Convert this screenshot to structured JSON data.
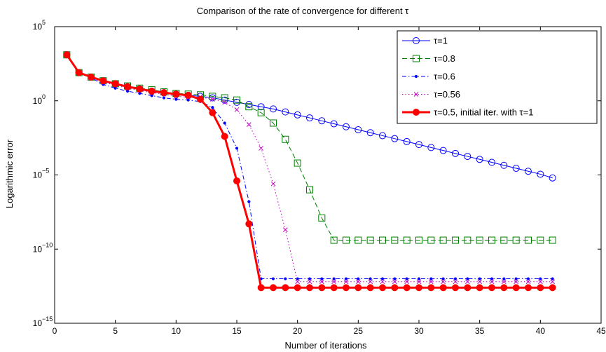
{
  "chart_data": {
    "type": "line",
    "title": "Comparison of the rate of convergence for different τ",
    "xlabel": "Number of iterations",
    "ylabel": "Logarithmic error",
    "xlim": [
      0,
      45
    ],
    "ylim_log10": [
      -15,
      5
    ],
    "yscale": "log",
    "xticks": [
      0,
      5,
      10,
      15,
      20,
      25,
      30,
      35,
      40,
      45
    ],
    "xtick_labels": [
      "0",
      "5",
      "10",
      "15",
      "20",
      "25",
      "30",
      "35",
      "40",
      "45"
    ],
    "yticks_log10": [
      -15,
      -10,
      -5,
      0,
      5
    ],
    "ytick_bases": [
      "10",
      "10",
      "10",
      "10",
      "10"
    ],
    "ytick_exps": [
      "−15",
      "−10",
      "−5",
      "0",
      "5"
    ],
    "grid": false,
    "legend_position": "top-right",
    "series": [
      {
        "name": "τ=1",
        "color": "#0000ff",
        "marker": "circle",
        "line": "solid",
        "width": 1,
        "x": [
          1,
          2,
          3,
          4,
          5,
          6,
          7,
          8,
          9,
          10,
          11,
          12,
          13,
          14,
          15,
          16,
          17,
          18,
          19,
          20,
          21,
          22,
          23,
          24,
          25,
          26,
          27,
          28,
          29,
          30,
          31,
          32,
          33,
          34,
          35,
          36,
          37,
          38,
          39,
          40,
          41
        ],
        "log10_y": [
          3.1,
          1.9,
          1.6,
          1.35,
          1.15,
          0.95,
          0.8,
          0.65,
          0.55,
          0.45,
          0.37,
          0.3,
          0.2,
          0.05,
          -0.1,
          -0.25,
          -0.4,
          -0.55,
          -0.75,
          -0.95,
          -1.15,
          -1.35,
          -1.55,
          -1.75,
          -1.95,
          -2.15,
          -2.35,
          -2.55,
          -2.75,
          -2.95,
          -3.15,
          -3.35,
          -3.55,
          -3.75,
          -3.95,
          -4.15,
          -4.35,
          -4.55,
          -4.75,
          -4.95,
          -5.2
        ]
      },
      {
        "name": "τ=0.8",
        "color": "#008000",
        "marker": "square",
        "line": "dashed",
        "width": 1,
        "x": [
          1,
          2,
          3,
          4,
          5,
          6,
          7,
          8,
          9,
          10,
          11,
          12,
          13,
          14,
          15,
          16,
          17,
          18,
          19,
          20,
          21,
          22,
          23,
          24,
          25,
          26,
          27,
          28,
          29,
          30,
          31,
          32,
          33,
          34,
          35,
          36,
          37,
          38,
          39,
          40,
          41
        ],
        "log10_y": [
          3.1,
          1.9,
          1.6,
          1.35,
          1.15,
          1.0,
          0.85,
          0.75,
          0.6,
          0.5,
          0.45,
          0.4,
          0.3,
          0.2,
          0.05,
          -0.4,
          -0.8,
          -1.5,
          -2.6,
          -4.2,
          -6.0,
          -7.9,
          -9.4,
          -9.4,
          -9.4,
          -9.4,
          -9.4,
          -9.4,
          -9.4,
          -9.4,
          -9.4,
          -9.4,
          -9.4,
          -9.4,
          -9.4,
          -9.4,
          -9.4,
          -9.4,
          -9.4,
          -9.4,
          -9.4
        ]
      },
      {
        "name": "τ=0.6",
        "color": "#0000ff",
        "marker": "dot",
        "line": "dashdot",
        "width": 1,
        "x": [
          1,
          2,
          3,
          4,
          5,
          6,
          7,
          8,
          9,
          10,
          11,
          12,
          13,
          14,
          15,
          16,
          17,
          18,
          19,
          20,
          21,
          22,
          23,
          24,
          25,
          26,
          27,
          28,
          29,
          30,
          31,
          32,
          33,
          34,
          35,
          36,
          37,
          38,
          39,
          40,
          41
        ],
        "log10_y": [
          3.1,
          1.9,
          1.55,
          1.1,
          0.85,
          0.65,
          0.5,
          0.35,
          0.2,
          0.1,
          0.05,
          -0.05,
          -0.45,
          -1.5,
          -3.2,
          -6.8,
          -12.0,
          -12.0,
          -12.0,
          -12.0,
          -12.0,
          -12.0,
          -12.0,
          -12.0,
          -12.0,
          -12.0,
          -12.0,
          -12.0,
          -12.0,
          -12.0,
          -12.0,
          -12.0,
          -12.0,
          -12.0,
          -12.0,
          -12.0,
          -12.0,
          -12.0,
          -12.0,
          -12.0,
          -12.0
        ]
      },
      {
        "name": "τ=0.56",
        "color": "#bf00bf",
        "marker": "x",
        "line": "dotted",
        "width": 1,
        "x": [
          1,
          2,
          3,
          4,
          5,
          6,
          7,
          8,
          9,
          10,
          11,
          12,
          13,
          14,
          15,
          16,
          17,
          18,
          19,
          20,
          21,
          22,
          23,
          24,
          25,
          26,
          27,
          28,
          29,
          30,
          31,
          32,
          33,
          34,
          35,
          36,
          37,
          38,
          39,
          40,
          41
        ],
        "log10_y": [
          3.1,
          1.9,
          1.55,
          1.25,
          1.05,
          0.85,
          0.7,
          0.55,
          0.45,
          0.3,
          0.25,
          0.25,
          0.1,
          -0.1,
          -0.6,
          -1.6,
          -3.2,
          -5.6,
          -8.7,
          -12.2,
          -12.2,
          -12.2,
          -12.2,
          -12.2,
          -12.2,
          -12.2,
          -12.2,
          -12.2,
          -12.2,
          -12.2,
          -12.2,
          -12.2,
          -12.2,
          -12.2,
          -12.2,
          -12.2,
          -12.2,
          -12.2,
          -12.2,
          -12.2,
          -12.2
        ]
      },
      {
        "name": "τ=0.5, initial iter. with τ=1",
        "color": "#ff0000",
        "marker": "filled-circle",
        "line": "solid",
        "width": 3,
        "x": [
          1,
          2,
          3,
          4,
          5,
          6,
          7,
          8,
          9,
          10,
          11,
          12,
          13,
          14,
          15,
          16,
          17,
          18,
          19,
          20,
          21,
          22,
          23,
          24,
          25,
          26,
          27,
          28,
          29,
          30,
          31,
          32,
          33,
          34,
          35,
          36,
          37,
          38,
          39,
          40,
          41
        ],
        "log10_y": [
          3.1,
          1.9,
          1.6,
          1.35,
          1.15,
          0.95,
          0.8,
          0.65,
          0.55,
          0.45,
          0.37,
          0.1,
          -0.8,
          -2.4,
          -5.4,
          -8.3,
          -12.6,
          -12.6,
          -12.6,
          -12.6,
          -12.6,
          -12.6,
          -12.6,
          -12.6,
          -12.6,
          -12.6,
          -12.6,
          -12.6,
          -12.6,
          -12.6,
          -12.6,
          -12.6,
          -12.6,
          -12.6,
          -12.6,
          -12.6,
          -12.6,
          -12.6,
          -12.6,
          -12.6,
          -12.6
        ]
      }
    ]
  }
}
